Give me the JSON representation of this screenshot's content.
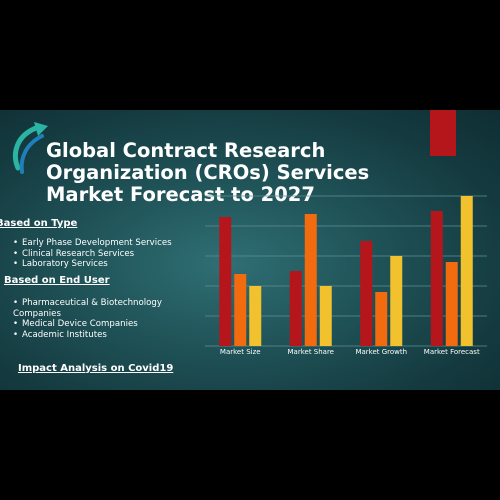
{
  "title_lines": [
    "Global  Contract Research",
    "Organization (CROs) Services",
    "Market Forecast to 2027"
  ],
  "sections": {
    "type_heading": "Based on Type",
    "type_items": [
      "Early Phase Development Services",
      "Clinical Research Services",
      "Laboratory Services"
    ],
    "end_user_heading": "Based on End User",
    "end_user_items": [
      "Pharmaceutical & Biotechnology",
      "Companies",
      "Medical Device Companies",
      "Academic Institutes"
    ],
    "covid_link": "Impact Analysis on Covid19"
  },
  "colors": {
    "accent_red": "#b5161c",
    "orange": "#f26b0f",
    "yellow": "#f2c12e",
    "background": "#1f5257"
  },
  "icons": [
    "arrow-logo-icon"
  ],
  "chart_data": {
    "type": "bar",
    "categories": [
      "Market Size",
      "Market Share",
      "Market Growth",
      "Market Forecast"
    ],
    "series": [
      {
        "values": [
          4.3,
          2.5,
          3.5,
          4.5
        ],
        "color": "#b5161c"
      },
      {
        "values": [
          2.4,
          4.4,
          1.8,
          2.8
        ],
        "color": "#f26b0f"
      },
      {
        "values": [
          2.0,
          2.0,
          3.0,
          5.0
        ],
        "color": "#f2c12e"
      }
    ],
    "ylim": [
      0,
      5
    ],
    "grid": true,
    "xlabel": "",
    "ylabel": ""
  }
}
